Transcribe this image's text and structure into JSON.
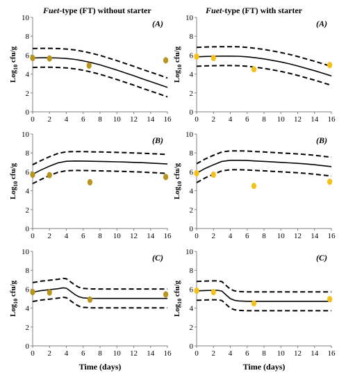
{
  "figure": {
    "column_titles": [
      {
        "italic_part": "Fuet",
        "rest": "-type (FT) without starter"
      },
      {
        "italic_part": "Fuet",
        "rest": "-type (FT) with starter"
      }
    ],
    "ylabel_main": "Log",
    "ylabel_sub": "10",
    "ylabel_rest": " cfu/g",
    "xlabel": "Time (days)",
    "colors": {
      "left_points": "#B8951F",
      "right_points": "#F2C21A",
      "lines": "#000000",
      "axis": "#7f7f7f"
    }
  },
  "chart_data": [
    {
      "type": "line",
      "panel_label": "(A)",
      "column": "without starter",
      "row": 1,
      "xlim": [
        0,
        16
      ],
      "ylim": [
        0,
        10
      ],
      "xticks": [
        "0",
        "2",
        "4",
        "6",
        "8",
        "10",
        "12",
        "14",
        "16"
      ],
      "yticks": [
        "0",
        "2",
        "4",
        "6",
        "8",
        "10"
      ],
      "series": [
        {
          "style": "solid",
          "x": [
            0,
            1,
            2,
            3,
            4,
            5,
            6,
            7,
            8,
            9,
            10,
            11,
            12,
            13,
            14,
            15,
            16
          ],
          "y": [
            5.7,
            5.72,
            5.72,
            5.7,
            5.65,
            5.55,
            5.4,
            5.2,
            4.97,
            4.7,
            4.42,
            4.12,
            3.82,
            3.5,
            3.2,
            2.9,
            2.58
          ]
        },
        {
          "style": "dashed",
          "x": [
            0,
            1,
            2,
            3,
            4,
            5,
            6,
            7,
            8,
            9,
            10,
            11,
            12,
            13,
            14,
            15,
            16
          ],
          "y": [
            6.7,
            6.72,
            6.72,
            6.7,
            6.65,
            6.55,
            6.4,
            6.2,
            5.97,
            5.7,
            5.42,
            5.12,
            4.82,
            4.5,
            4.2,
            3.9,
            3.58
          ]
        },
        {
          "style": "dashed",
          "x": [
            0,
            1,
            2,
            3,
            4,
            5,
            6,
            7,
            8,
            9,
            10,
            11,
            12,
            13,
            14,
            15,
            16
          ],
          "y": [
            4.7,
            4.72,
            4.72,
            4.7,
            4.65,
            4.55,
            4.4,
            4.2,
            3.97,
            3.7,
            3.42,
            3.12,
            2.82,
            2.5,
            2.2,
            1.9,
            1.58
          ]
        },
        {
          "style": "points",
          "x": [
            0,
            2,
            6.7,
            15.8
          ],
          "y": [
            5.7,
            5.65,
            4.9,
            5.45
          ]
        }
      ]
    },
    {
      "type": "line",
      "panel_label": "(A)",
      "column": "with starter",
      "row": 1,
      "xlim": [
        0,
        16
      ],
      "ylim": [
        0,
        10
      ],
      "xticks": [
        "0",
        "2",
        "4",
        "6",
        "8",
        "10",
        "12",
        "14",
        "16"
      ],
      "yticks": [
        "0",
        "2",
        "4",
        "6",
        "8",
        "10"
      ],
      "series": [
        {
          "style": "solid",
          "x": [
            0,
            1,
            2,
            3,
            4,
            5,
            6,
            7,
            8,
            9,
            10,
            11,
            12,
            13,
            14,
            15,
            16
          ],
          "y": [
            5.82,
            5.86,
            5.88,
            5.9,
            5.9,
            5.88,
            5.82,
            5.72,
            5.6,
            5.45,
            5.28,
            5.08,
            4.85,
            4.6,
            4.35,
            4.08,
            3.8
          ]
        },
        {
          "style": "dashed",
          "x": [
            0,
            1,
            2,
            3,
            4,
            5,
            6,
            7,
            8,
            9,
            10,
            11,
            12,
            13,
            14,
            15,
            16
          ],
          "y": [
            6.82,
            6.86,
            6.88,
            6.9,
            6.9,
            6.88,
            6.82,
            6.72,
            6.6,
            6.45,
            6.28,
            6.08,
            5.85,
            5.6,
            5.35,
            5.08,
            4.8
          ]
        },
        {
          "style": "dashed",
          "x": [
            0,
            1,
            2,
            3,
            4,
            5,
            6,
            7,
            8,
            9,
            10,
            11,
            12,
            13,
            14,
            15,
            16
          ],
          "y": [
            4.82,
            4.86,
            4.88,
            4.9,
            4.9,
            4.88,
            4.82,
            4.72,
            4.6,
            4.45,
            4.28,
            4.08,
            3.85,
            3.6,
            3.35,
            3.08,
            2.8
          ]
        },
        {
          "style": "points",
          "x": [
            0,
            2,
            6.8,
            15.8
          ],
          "y": [
            5.85,
            5.7,
            4.5,
            4.95
          ]
        }
      ]
    },
    {
      "type": "line",
      "panel_label": "(B)",
      "column": "without starter",
      "row": 2,
      "xlim": [
        0,
        16
      ],
      "ylim": [
        0,
        10
      ],
      "xticks": [
        "0",
        "2",
        "4",
        "6",
        "8",
        "10",
        "12",
        "14",
        "16"
      ],
      "yticks": [
        "0",
        "2",
        "4",
        "6",
        "8",
        "10"
      ],
      "series": [
        {
          "style": "solid",
          "x": [
            0,
            1,
            2,
            3,
            4,
            5,
            6,
            7,
            8,
            9,
            10,
            11,
            12,
            13,
            14,
            15,
            16
          ],
          "y": [
            5.75,
            6.2,
            6.6,
            6.95,
            7.12,
            7.15,
            7.14,
            7.12,
            7.1,
            7.08,
            7.06,
            7.04,
            7.0,
            6.97,
            6.93,
            6.88,
            6.83
          ]
        },
        {
          "style": "dashed",
          "x": [
            0,
            1,
            2,
            3,
            4,
            5,
            6,
            7,
            8,
            9,
            10,
            11,
            12,
            13,
            14,
            15,
            16
          ],
          "y": [
            6.75,
            7.2,
            7.6,
            7.95,
            8.12,
            8.15,
            8.14,
            8.12,
            8.1,
            8.08,
            8.06,
            8.04,
            8.0,
            7.97,
            7.93,
            7.88,
            7.83
          ]
        },
        {
          "style": "dashed",
          "x": [
            0,
            1,
            2,
            3,
            4,
            5,
            6,
            7,
            8,
            9,
            10,
            11,
            12,
            13,
            14,
            15,
            16
          ],
          "y": [
            4.75,
            5.2,
            5.6,
            5.95,
            6.12,
            6.15,
            6.14,
            6.12,
            6.1,
            6.08,
            6.06,
            6.04,
            6.0,
            5.97,
            5.93,
            5.88,
            5.83
          ]
        },
        {
          "style": "points",
          "x": [
            0,
            2,
            6.8,
            15.8
          ],
          "y": [
            5.7,
            5.65,
            4.9,
            5.45
          ]
        }
      ]
    },
    {
      "type": "line",
      "panel_label": "(B)",
      "column": "with starter",
      "row": 2,
      "xlim": [
        0,
        16
      ],
      "ylim": [
        0,
        10
      ],
      "xticks": [
        "0",
        "2",
        "4",
        "6",
        "8",
        "10",
        "12",
        "14",
        "16"
      ],
      "yticks": [
        "0",
        "2",
        "4",
        "6",
        "8",
        "10"
      ],
      "series": [
        {
          "style": "solid",
          "x": [
            0,
            1,
            2,
            3,
            4,
            5,
            6,
            7,
            8,
            9,
            10,
            11,
            12,
            13,
            14,
            15,
            16
          ],
          "y": [
            5.85,
            6.35,
            6.75,
            7.1,
            7.22,
            7.22,
            7.2,
            7.15,
            7.1,
            7.05,
            7.0,
            6.95,
            6.9,
            6.83,
            6.75,
            6.65,
            6.55
          ]
        },
        {
          "style": "dashed",
          "x": [
            0,
            1,
            2,
            3,
            4,
            5,
            6,
            7,
            8,
            9,
            10,
            11,
            12,
            13,
            14,
            15,
            16
          ],
          "y": [
            6.85,
            7.35,
            7.75,
            8.1,
            8.22,
            8.22,
            8.2,
            8.15,
            8.1,
            8.05,
            8.0,
            7.95,
            7.9,
            7.83,
            7.75,
            7.65,
            7.55
          ]
        },
        {
          "style": "dashed",
          "x": [
            0,
            1,
            2,
            3,
            4,
            5,
            6,
            7,
            8,
            9,
            10,
            11,
            12,
            13,
            14,
            15,
            16
          ],
          "y": [
            4.85,
            5.35,
            5.75,
            6.1,
            6.22,
            6.22,
            6.2,
            6.15,
            6.1,
            6.05,
            6.0,
            5.95,
            5.9,
            5.83,
            5.75,
            5.65,
            5.55
          ]
        },
        {
          "style": "points",
          "x": [
            0,
            2,
            6.8,
            15.8
          ],
          "y": [
            5.85,
            5.7,
            4.5,
            4.95
          ]
        }
      ]
    },
    {
      "type": "line",
      "panel_label": "(C)",
      "column": "without starter",
      "row": 3,
      "xlim": [
        0,
        16
      ],
      "ylim": [
        0,
        10
      ],
      "xticks": [
        "0",
        "2",
        "4",
        "6",
        "8",
        "10",
        "12",
        "14",
        "16"
      ],
      "yticks": [
        "0",
        "2",
        "4",
        "6",
        "8",
        "10"
      ],
      "series": [
        {
          "style": "solid",
          "x": [
            0,
            1,
            2,
            3,
            3.6,
            4,
            4.4,
            5,
            5.5,
            6,
            7,
            8,
            10,
            12,
            14,
            16
          ],
          "y": [
            5.7,
            5.85,
            5.95,
            6.05,
            6.15,
            6.1,
            5.85,
            5.45,
            5.2,
            5.08,
            5.03,
            5.02,
            5.02,
            5.02,
            5.02,
            5.02
          ]
        },
        {
          "style": "dashed",
          "x": [
            0,
            1,
            2,
            3,
            3.6,
            4,
            4.4,
            5,
            5.5,
            6,
            7,
            8,
            10,
            12,
            14,
            16
          ],
          "y": [
            6.7,
            6.85,
            6.95,
            7.05,
            7.15,
            7.1,
            6.85,
            6.45,
            6.2,
            6.08,
            6.03,
            6.02,
            6.02,
            6.02,
            6.02,
            6.02
          ]
        },
        {
          "style": "dashed",
          "x": [
            0,
            1,
            2,
            3,
            3.6,
            4,
            4.4,
            5,
            5.5,
            6,
            7,
            8,
            10,
            12,
            14,
            16
          ],
          "y": [
            4.7,
            4.85,
            4.95,
            5.05,
            5.15,
            5.1,
            4.85,
            4.45,
            4.2,
            4.08,
            4.03,
            4.02,
            4.02,
            4.02,
            4.02,
            4.02
          ]
        },
        {
          "style": "points",
          "x": [
            0,
            2,
            6.8,
            15.8
          ],
          "y": [
            5.7,
            5.65,
            4.9,
            5.45
          ]
        }
      ]
    },
    {
      "type": "line",
      "panel_label": "(C)",
      "column": "with starter",
      "row": 3,
      "xlim": [
        0,
        16
      ],
      "ylim": [
        0,
        10
      ],
      "xticks": [
        "0",
        "2",
        "4",
        "6",
        "8",
        "10",
        "12",
        "14",
        "16"
      ],
      "yticks": [
        "0",
        "2",
        "4",
        "6",
        "8",
        "10"
      ],
      "series": [
        {
          "style": "solid",
          "x": [
            0,
            1,
            2,
            2.5,
            3,
            3.5,
            4,
            4.5,
            5,
            6,
            8,
            10,
            12,
            14,
            16
          ],
          "y": [
            5.82,
            5.86,
            5.88,
            5.88,
            5.8,
            5.4,
            5.0,
            4.82,
            4.76,
            4.72,
            4.72,
            4.72,
            4.72,
            4.72,
            4.72
          ]
        },
        {
          "style": "dashed",
          "x": [
            0,
            1,
            2,
            2.5,
            3,
            3.5,
            4,
            4.5,
            5,
            6,
            8,
            10,
            12,
            14,
            16
          ],
          "y": [
            6.82,
            6.86,
            6.88,
            6.88,
            6.8,
            6.4,
            6.0,
            5.82,
            5.76,
            5.72,
            5.72,
            5.72,
            5.72,
            5.72,
            5.72
          ]
        },
        {
          "style": "dashed",
          "x": [
            0,
            1,
            2,
            2.5,
            3,
            3.5,
            4,
            4.5,
            5,
            6,
            8,
            10,
            12,
            14,
            16
          ],
          "y": [
            4.82,
            4.86,
            4.88,
            4.88,
            4.8,
            4.4,
            4.0,
            3.82,
            3.76,
            3.72,
            3.72,
            3.72,
            3.72,
            3.72,
            3.72
          ]
        },
        {
          "style": "points",
          "x": [
            0,
            2,
            6.8,
            15.8
          ],
          "y": [
            5.85,
            5.7,
            4.5,
            4.95
          ]
        }
      ]
    }
  ]
}
